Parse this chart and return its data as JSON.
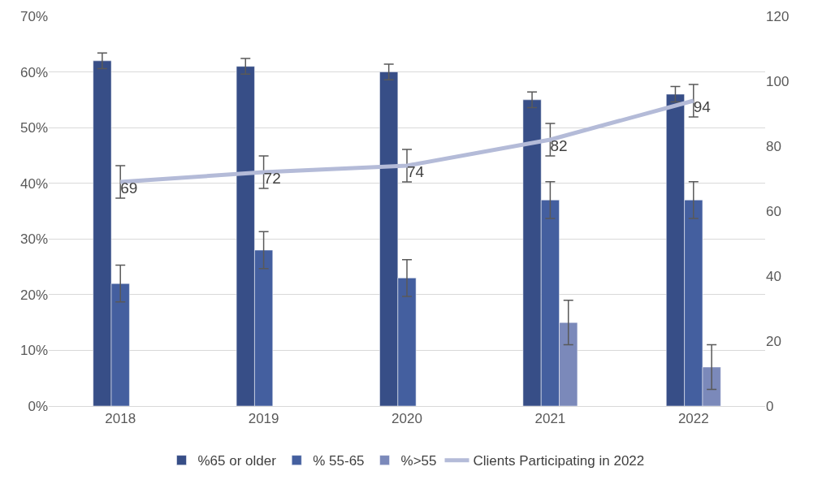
{
  "chart_data": {
    "type": "bar",
    "categories": [
      "2018",
      "2019",
      "2020",
      "2021",
      "2022"
    ],
    "series": [
      {
        "name": "%65 or older",
        "color": "#374e87",
        "values": [
          62,
          61,
          60,
          55,
          56
        ],
        "errors": [
          1.4,
          1.4,
          1.4,
          1.4,
          1.4
        ]
      },
      {
        "name": "% 55-65",
        "color": "#445f9f",
        "values": [
          22,
          28,
          23,
          37,
          37
        ],
        "errors": [
          3.3,
          3.3,
          3.3,
          3.3,
          3.3
        ]
      },
      {
        "name": "%>55",
        "color": "#7b89ba",
        "values": [
          null,
          null,
          null,
          15,
          7
        ],
        "errors": [
          null,
          null,
          null,
          4,
          4
        ]
      },
      {
        "name": "Clients Participating in 2022",
        "type": "line",
        "axis": "y2",
        "color": "#b4bbd8",
        "values": [
          69,
          72,
          74,
          82,
          94
        ],
        "errors": [
          5,
          5,
          5,
          5,
          5
        ],
        "value_labels": [
          "69",
          "72",
          "74",
          "82",
          "94"
        ],
        "marker": "none"
      }
    ],
    "ylim": [
      0,
      70
    ],
    "yticks": [
      {
        "value": 0,
        "label": "0%"
      },
      {
        "value": 10,
        "label": "10%"
      },
      {
        "value": 20,
        "label": "20%"
      },
      {
        "value": 30,
        "label": "30%"
      },
      {
        "value": 40,
        "label": "40%"
      },
      {
        "value": 50,
        "label": "50%"
      },
      {
        "value": 60,
        "label": "60%"
      },
      {
        "value": 70,
        "label": "70%"
      }
    ],
    "y2lim": [
      0,
      120
    ],
    "y2ticks": [
      0,
      20,
      40,
      60,
      80,
      100,
      120
    ],
    "grid": "y",
    "legend": "bottom"
  }
}
